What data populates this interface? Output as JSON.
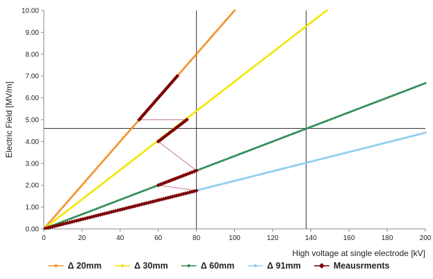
{
  "chart_data": {
    "type": "line",
    "xlabel": "High voltage at single electrode [kV]",
    "ylabel": "Electric Field [MV/m]",
    "xlim": [
      0,
      200
    ],
    "ylim": [
      0,
      10
    ],
    "x_ticks": [
      "0",
      "20",
      "40",
      "60",
      "80",
      "100",
      "120",
      "140",
      "160",
      "180",
      "200"
    ],
    "y_ticks": [
      "0.00",
      "1.00",
      "2.00",
      "3.00",
      "4.00",
      "5.00",
      "6.00",
      "7.00",
      "8.00",
      "9.00",
      "10.00"
    ],
    "legend_position": "bottom",
    "grid": false,
    "reference_lines": [
      {
        "orientation": "vertical",
        "x": 80
      },
      {
        "orientation": "vertical",
        "x": 137.5
      },
      {
        "orientation": "horizontal",
        "y": 4.6
      }
    ],
    "series": [
      {
        "name": "Δ 20mm",
        "color": "#f0922f",
        "marker": "small-dot",
        "x": [
          0,
          101.5
        ],
        "y": [
          0,
          10.15
        ]
      },
      {
        "name": "Δ 30mm",
        "color": "#f2e600",
        "marker": "small-dot",
        "x": [
          0,
          150.5
        ],
        "y": [
          0,
          10.15
        ]
      },
      {
        "name": "Δ 60mm",
        "color": "#2e8b57",
        "marker": "small-dot",
        "x": [
          0,
          200
        ],
        "y": [
          0,
          6.67
        ]
      },
      {
        "name": "Δ 91mm",
        "color": "#8ecdf0",
        "marker": "small-dot",
        "x": [
          0,
          200
        ],
        "y": [
          0,
          4.4
        ]
      },
      {
        "name": "Meausrments",
        "color": "#7b0000",
        "marker": "diamond",
        "x": [
          0,
          80
        ],
        "y": [
          0,
          1.75
        ]
      }
    ],
    "measurement_segments": [
      {
        "x": [
          50,
          70
        ],
        "y": [
          5.0,
          7.0
        ]
      },
      {
        "x": [
          60,
          75
        ],
        "y": [
          4.0,
          5.0
        ]
      },
      {
        "x": [
          60,
          80
        ],
        "y": [
          2.0,
          2.67
        ]
      },
      {
        "x": [
          0,
          80
        ],
        "y": [
          0,
          1.75
        ]
      }
    ],
    "connector_segments": [
      {
        "x": [
          50,
          75
        ],
        "y": [
          5.0,
          5.0
        ]
      },
      {
        "x": [
          60,
          80
        ],
        "y": [
          4.0,
          2.67
        ]
      },
      {
        "x": [
          60,
          80
        ],
        "y": [
          2.0,
          1.75
        ]
      }
    ]
  }
}
